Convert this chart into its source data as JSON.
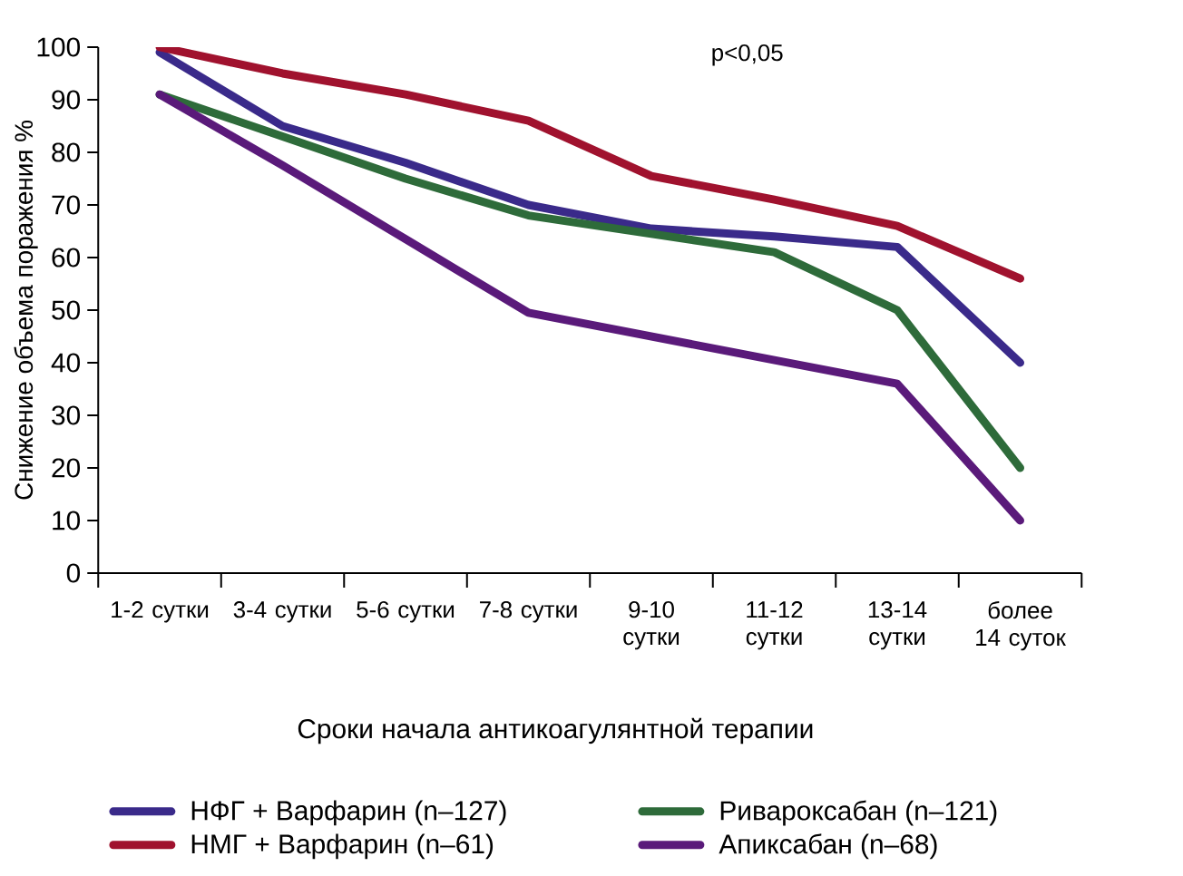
{
  "chart_data": {
    "type": "line",
    "ylabel": "Снижение объема поражения %",
    "xlabel": "Сроки начала антикоагулянтной терапии",
    "annotations": [
      "p<0,05"
    ],
    "categories": [
      "1-2 сутки",
      "3-4 сутки",
      "5-6 сутки",
      "7-8 сутки",
      "9-10 сутки",
      "11-12 сутки",
      "13-14 сутки",
      "более 14 суток"
    ],
    "series": [
      {
        "name": "НФГ + Варфарин (n–127)",
        "color": "#3a2a8a",
        "values": [
          99,
          85,
          78,
          70,
          65.5,
          64,
          62,
          40
        ]
      },
      {
        "name": "НМГ + Варфарин (n–61)",
        "color": "#a0122e",
        "values": [
          100,
          95,
          91,
          86,
          75.5,
          71,
          66,
          56
        ]
      },
      {
        "name": "Ривароксабан (n–121)",
        "color": "#2e6b3a",
        "values": [
          91,
          83,
          75,
          68,
          64.5,
          61,
          50,
          20
        ]
      },
      {
        "name": "Апиксабан (n–68)",
        "color": "#5a1a7a",
        "values": [
          91,
          77.5,
          63.5,
          49.5,
          45,
          40.5,
          36,
          10
        ]
      }
    ],
    "ylim": [
      0,
      100
    ],
    "yticks": [
      0,
      10,
      20,
      30,
      40,
      50,
      60,
      70,
      80,
      90,
      100
    ],
    "grid": false,
    "legend": "bottom",
    "marker": "none",
    "line_style": "solid"
  }
}
